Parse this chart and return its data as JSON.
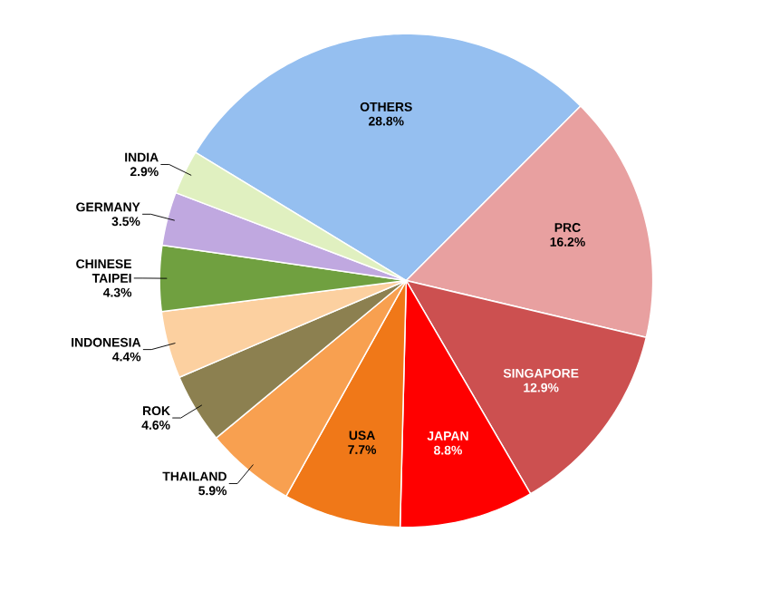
{
  "chart_data": {
    "type": "pie",
    "categories": [
      "OTHERS",
      "PRC",
      "SINGAPORE",
      "JAPAN",
      "USA",
      "THAILAND",
      "ROK",
      "INDONESIA",
      "CHINESE TAIPEI",
      "GERMANY",
      "INDIA"
    ],
    "values": [
      28.8,
      16.2,
      12.9,
      8.8,
      7.7,
      5.9,
      4.6,
      4.4,
      4.3,
      3.5,
      2.9
    ],
    "value_labels": [
      "28.8%",
      "16.2%",
      "12.9%",
      "8.8%",
      "7.7%",
      "5.9%",
      "4.6%",
      "4.4%",
      "4.3%",
      "3.5%",
      "2.9%"
    ],
    "colors": [
      "#95bff0",
      "#e8a0a0",
      "#cc5050",
      "#ff0000",
      "#f07818",
      "#f8a050",
      "#8c8050",
      "#fcd0a0",
      "#70a040",
      "#c0a8e0",
      "#e0f0c0"
    ]
  }
}
